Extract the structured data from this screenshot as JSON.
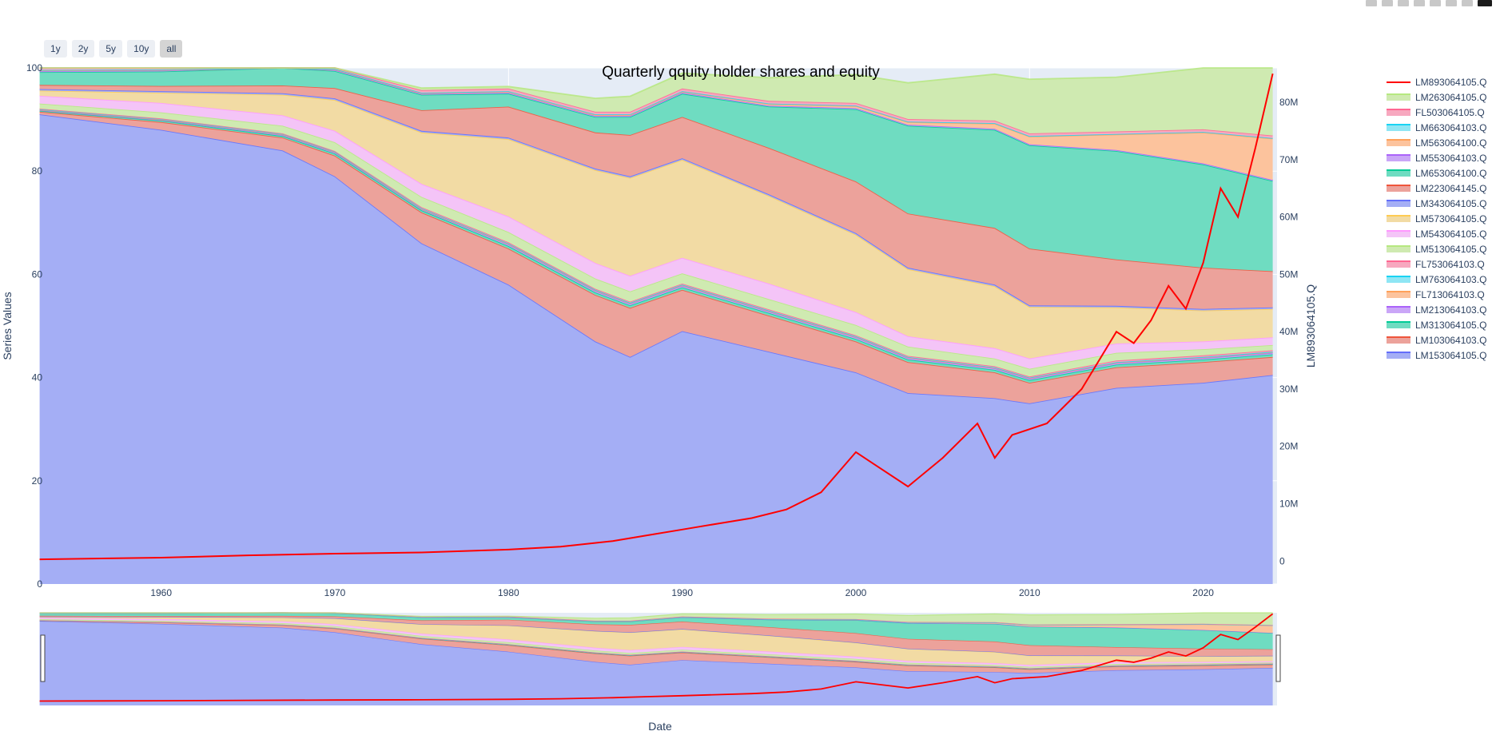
{
  "rangeselector": {
    "buttons": [
      "1y",
      "2y",
      "5y",
      "10y",
      "all"
    ],
    "active": "all"
  },
  "chart_data": {
    "type": "area",
    "title": "Quarterly qquity holder shares and equity",
    "xlabel": "Date",
    "ylabel": "Series Values",
    "y2label": "LM893064105.Q",
    "xlim": [
      1953.25,
      2024.25
    ],
    "ylim": [
      0,
      100
    ],
    "y2lim": [
      -4,
      86
    ],
    "xticks": [
      1960,
      1970,
      1980,
      1990,
      2000,
      2010,
      2020
    ],
    "yticks": [
      0,
      20,
      40,
      60,
      80,
      100
    ],
    "y2ticks": [
      0,
      10000000,
      20000000,
      30000000,
      40000000,
      50000000,
      60000000,
      70000000,
      80000000
    ],
    "y2ticklabels": [
      "0",
      "10M",
      "20M",
      "30M",
      "40M",
      "50M",
      "60M",
      "70M",
      "80M"
    ],
    "stack_x": [
      1953,
      1960,
      1967,
      1970,
      1975,
      1980,
      1985,
      1987,
      1990,
      1995,
      2000,
      2003,
      2008,
      2010,
      2015,
      2020,
      2024
    ],
    "stacked_series": [
      {
        "name": "LM153064105.Q",
        "fill": "#a4aef5",
        "line": "#636efa",
        "values": [
          91,
          88,
          84,
          79,
          66,
          58,
          47,
          44,
          49,
          45,
          41,
          37,
          36,
          35,
          38,
          39,
          40.5
        ]
      },
      {
        "name": "LM103064103.Q",
        "fill": "#eca29b",
        "line": "#ef553b",
        "values": [
          0.5,
          1.5,
          2.5,
          4,
          6,
          7,
          9,
          9.5,
          8,
          7,
          6,
          6,
          5,
          4,
          4,
          4,
          3.5
        ]
      },
      {
        "name": "LM313064105.Q",
        "fill": "#6fdcc1",
        "line": "#00cc96",
        "values": [
          0.2,
          0.3,
          0.3,
          0.4,
          0.4,
          0.5,
          0.5,
          0.5,
          0.5,
          0.5,
          0.5,
          0.5,
          0.5,
          0.5,
          0.5,
          0.5,
          0.5
        ]
      },
      {
        "name": "LM213064103.Q",
        "fill": "#caa6f7",
        "line": "#ab63fa",
        "values": [
          0.1,
          0.1,
          0.2,
          0.2,
          0.2,
          0.3,
          0.3,
          0.3,
          0.3,
          0.3,
          0.3,
          0.3,
          0.3,
          0.3,
          0.3,
          0.3,
          0.3
        ]
      },
      {
        "name": "FL713064103.Q",
        "fill": "#fcc39d",
        "line": "#ffa15a",
        "values": [
          0.1,
          0.1,
          0.1,
          0.1,
          0.1,
          0.1,
          0.1,
          0.1,
          0.1,
          0.1,
          0.1,
          0.1,
          0.1,
          0.1,
          0.1,
          0.1,
          0.1
        ]
      },
      {
        "name": "LM763064103.Q",
        "fill": "#8fe6f4",
        "line": "#19d3f3",
        "values": [
          0.1,
          0.1,
          0.1,
          0.1,
          0.1,
          0.1,
          0.1,
          0.1,
          0.1,
          0.1,
          0.1,
          0.1,
          0.1,
          0.1,
          0.1,
          0.1,
          0.1
        ]
      },
      {
        "name": "FL753064103.Q",
        "fill": "#f7a8bf",
        "line": "#ff6692",
        "values": [
          0.1,
          0.1,
          0.1,
          0.1,
          0.2,
          0.2,
          0.2,
          0.2,
          0.2,
          0.2,
          0.2,
          0.2,
          0.2,
          0.2,
          0.3,
          0.3,
          0.3
        ]
      },
      {
        "name": "LM513064105.Q",
        "fill": "#cfeab1",
        "line": "#b6e880",
        "values": [
          1,
          1.2,
          1.5,
          1.7,
          2,
          2,
          2,
          2,
          2,
          2,
          2,
          1.8,
          1.5,
          1.5,
          1.5,
          1.2,
          1
        ]
      },
      {
        "name": "LM543064105.Q",
        "fill": "#f4c4f7",
        "line": "#ff97ff",
        "values": [
          1.5,
          1.8,
          2,
          2.2,
          2.5,
          3,
          3,
          3,
          3,
          3,
          2.5,
          2,
          2,
          2,
          1.8,
          1.5,
          1.5
        ]
      },
      {
        "name": "LM573064105.Q",
        "fill": "#f2dba4",
        "line": "#fecb52",
        "values": [
          1,
          2,
          4,
          6,
          10,
          15,
          18,
          19,
          19,
          17,
          15,
          13,
          12,
          10,
          7,
          6,
          5.5
        ]
      },
      {
        "name": "LM343064105.Q",
        "fill": "#a4aef5",
        "line": "#636efa",
        "values": [
          0.3,
          0.3,
          0.3,
          0.3,
          0.3,
          0.3,
          0.3,
          0.3,
          0.3,
          0.3,
          0.3,
          0.3,
          0.3,
          0.3,
          0.3,
          0.3,
          0.3
        ]
      },
      {
        "name": "LM223064145.Q",
        "fill": "#eca29b",
        "line": "#ef553b",
        "values": [
          0.8,
          1,
          1.5,
          2,
          4,
          6,
          7,
          8,
          8,
          9,
          10,
          10.5,
          11,
          11,
          9,
          8,
          7
        ]
      },
      {
        "name": "LM653064100.Q",
        "fill": "#6fdcc1",
        "line": "#00cc96",
        "values": [
          2.5,
          2.8,
          3.5,
          3.3,
          3,
          2.5,
          3,
          3.5,
          4.5,
          8,
          14,
          17,
          19,
          20,
          21,
          20,
          17.5
        ]
      },
      {
        "name": "LM553064103.Q",
        "fill": "#caa6f7",
        "line": "#ab63fa",
        "values": [
          0.2,
          0.2,
          0.2,
          0.2,
          0.2,
          0.2,
          0.2,
          0.2,
          0.2,
          0.2,
          0.2,
          0.2,
          0.2,
          0.2,
          0.2,
          0.2,
          0.2
        ]
      },
      {
        "name": "LM563064100.Q",
        "fill": "#fcc39d",
        "line": "#ffa15a",
        "values": [
          0.1,
          0.1,
          0.1,
          0.1,
          0.1,
          0.2,
          0.2,
          0.2,
          0.2,
          0.3,
          0.4,
          0.5,
          1,
          1.5,
          3,
          6,
          8
        ]
      },
      {
        "name": "LM663064103.Q",
        "fill": "#8fe6f4",
        "line": "#19d3f3",
        "values": [
          0.1,
          0.1,
          0.1,
          0.1,
          0.1,
          0.1,
          0.1,
          0.1,
          0.1,
          0.1,
          0.1,
          0.1,
          0.1,
          0.1,
          0.1,
          0.1,
          0.1
        ]
      },
      {
        "name": "FL503064105.Q",
        "fill": "#f7a8bf",
        "line": "#ff6692",
        "values": [
          0.5,
          0.5,
          0.5,
          0.5,
          0.5,
          0.5,
          0.5,
          0.5,
          0.5,
          0.5,
          0.5,
          0.5,
          0.5,
          0.5,
          0.5,
          0.5,
          0.5
        ]
      },
      {
        "name": "LM263064105.Q",
        "fill": "#cfeab1",
        "line": "#b6e880",
        "values": [
          0.4,
          0.4,
          0.2,
          0.4,
          0.4,
          0.4,
          2.6,
          3,
          3,
          4.5,
          5.5,
          7,
          9,
          10.5,
          10.5,
          14.5,
          16
        ]
      }
    ],
    "line_series": {
      "name": "LM893064105.Q",
      "color": "#ff0000",
      "x": [
        1953,
        1960,
        1965,
        1970,
        1975,
        1980,
        1983,
        1986,
        1988,
        1990,
        1992,
        1994,
        1996,
        1998,
        2000,
        2001,
        2003,
        2005,
        2007,
        2008,
        2009,
        2011,
        2012,
        2013,
        2015,
        2016,
        2017,
        2018,
        2019,
        2020,
        2021,
        2022,
        2023,
        2024
      ],
      "y": [
        0.3,
        0.6,
        1,
        1.3,
        1.5,
        2,
        2.5,
        3.5,
        4.5,
        5.5,
        6.5,
        7.5,
        9,
        12,
        19,
        17,
        13,
        18,
        24,
        18,
        22,
        24,
        27,
        30,
        40,
        38,
        42,
        48,
        44,
        52,
        65,
        60,
        72,
        85
      ]
    },
    "legend": {
      "position": "right",
      "order": [
        "LM893064105.Q",
        "LM263064105.Q",
        "FL503064105.Q",
        "LM663064103.Q",
        "LM563064100.Q",
        "LM553064103.Q",
        "LM653064100.Q",
        "LM223064145.Q",
        "LM343064105.Q",
        "LM573064105.Q",
        "LM543064105.Q",
        "LM513064105.Q",
        "FL753064103.Q",
        "LM763064103.Q",
        "FL713064103.Q",
        "LM213064103.Q",
        "LM313064105.Q",
        "LM103064103.Q",
        "LM153064105.Q"
      ]
    },
    "grid": true,
    "rangeslider": true
  }
}
